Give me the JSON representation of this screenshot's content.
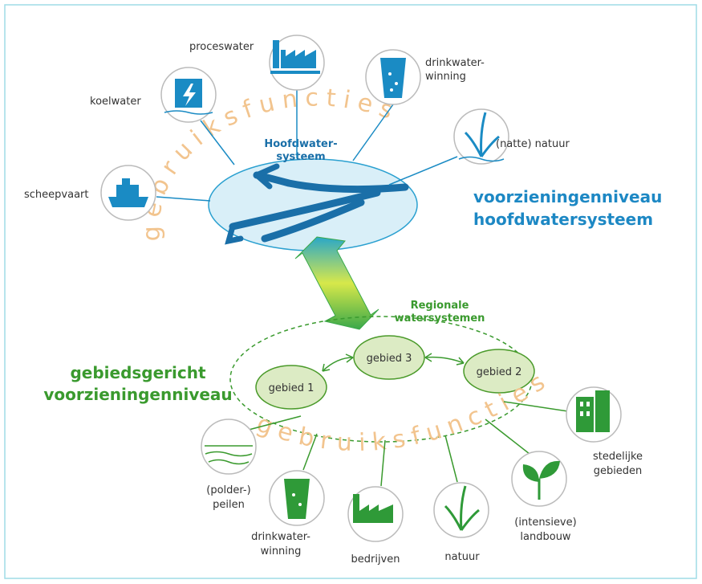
{
  "top": {
    "title": [
      "voorzieningenniveau",
      "hoofdwatersysteem"
    ],
    "center_label": [
      "Hoofdwater-",
      "systeem"
    ],
    "arc_text": "gebruiksfuncties",
    "functions": [
      {
        "label": [
          "proceswater"
        ]
      },
      {
        "label": [
          "koelwater"
        ]
      },
      {
        "label": [
          "drinkwater-",
          "winning"
        ]
      },
      {
        "label": [
          "(natte) natuur"
        ]
      },
      {
        "label": [
          "scheepvaart"
        ]
      }
    ]
  },
  "bottom": {
    "title": [
      "gebiedsgericht",
      "voorzieningenniveau"
    ],
    "region_label": [
      "Regionale",
      "watersystemen"
    ],
    "areas": [
      "gebied 1",
      "gebied 3",
      "gebied 2"
    ],
    "arc_text": "gebruiksfuncties",
    "functions": [
      {
        "label": [
          "(polder-)",
          "peilen"
        ]
      },
      {
        "label": [
          "drinkwater-",
          "winning"
        ]
      },
      {
        "label": [
          "bedrijven"
        ]
      },
      {
        "label": [
          "natuur"
        ]
      },
      {
        "label": [
          "(intensieve)",
          "landbouw"
        ]
      },
      {
        "label": [
          "stedelijke",
          "gebieden"
        ]
      }
    ]
  }
}
